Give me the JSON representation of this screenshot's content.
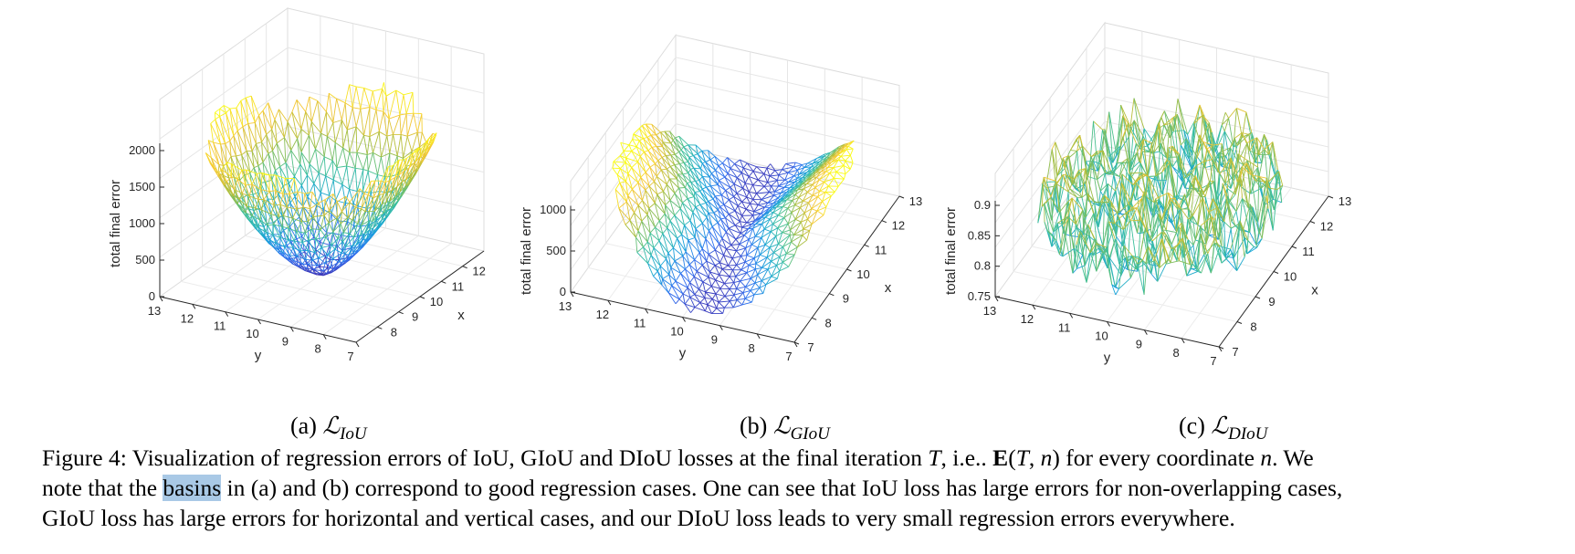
{
  "chart_data": [
    {
      "type": "surface",
      "panel": "(a)",
      "zlabel": "total final error",
      "xlabel": "x",
      "ylabel": "y",
      "zticks": [
        "0",
        "500",
        "1000",
        "1500",
        "2000"
      ],
      "yticks": [
        "13",
        "12",
        "11",
        "10",
        "9",
        "8",
        "7"
      ],
      "xticks": [
        "8",
        "9",
        "10",
        "11",
        "12"
      ],
      "zlim": [
        0,
        2000
      ],
      "shape": "iou-basin",
      "colormap": "parula",
      "palette": [
        "#3e26a8",
        "#2f6ff0",
        "#16a5d7",
        "#3dc09a",
        "#a9bd3b",
        "#f6c736",
        "#f9fb15"
      ]
    },
    {
      "type": "surface",
      "panel": "(b)",
      "zlabel": "total final error",
      "xlabel": "x",
      "ylabel": "y",
      "zticks": [
        "0",
        "500",
        "1000"
      ],
      "yticks": [
        "13",
        "12",
        "11",
        "10",
        "9",
        "8",
        "7"
      ],
      "xticks": [
        "7",
        "8",
        "9",
        "10",
        "11",
        "12",
        "13"
      ],
      "zlim": [
        0,
        1000
      ],
      "shape": "giou-saddle",
      "colormap": "parula"
    },
    {
      "type": "surface",
      "panel": "(c)",
      "zlabel": "total final error",
      "xlabel": "x",
      "ylabel": "y",
      "zticks": [
        "0.75",
        "0.8",
        "0.85",
        "0.9"
      ],
      "yticks": [
        "13",
        "12",
        "11",
        "10",
        "9",
        "8",
        "7"
      ],
      "xticks": [
        "7",
        "8",
        "9",
        "10",
        "11",
        "12",
        "13"
      ],
      "zlim": [
        0.75,
        0.9
      ],
      "shape": "diou-noise-disk",
      "colormap": "parula"
    }
  ],
  "subcaptions": [
    {
      "label": "(a)",
      "loss": "IoU"
    },
    {
      "label": "(b)",
      "loss": "GIoU"
    },
    {
      "label": "(c)",
      "loss": "DIoU"
    }
  ],
  "script_L": "ℒ",
  "caption": {
    "figure_label": "Figure 4:",
    "l1_a": " Visualization of regression errors of IoU, GIoU and DIoU losses at the final iteration ",
    "sym_T": "T",
    "l1_b": ", i.e.. ",
    "sym_E": "E",
    "sym_args_open": "(",
    "sym_T2": "T",
    "sym_comma": ", ",
    "sym_n": "n",
    "sym_args_close": ")",
    "l1_c": " for every coordinate ",
    "sym_n2": "n",
    "l1_d": ". We",
    "l2_a": "note that the ",
    "l2_highlight": "basins",
    "l2_b": " in (a) and (b) correspond to good regression cases. One can see that IoU loss has large errors for non-overlapping cases,",
    "l3": "GIoU loss has large errors for horizontal and vertical cases, and our DIoU loss leads to very small regression errors everywhere."
  }
}
